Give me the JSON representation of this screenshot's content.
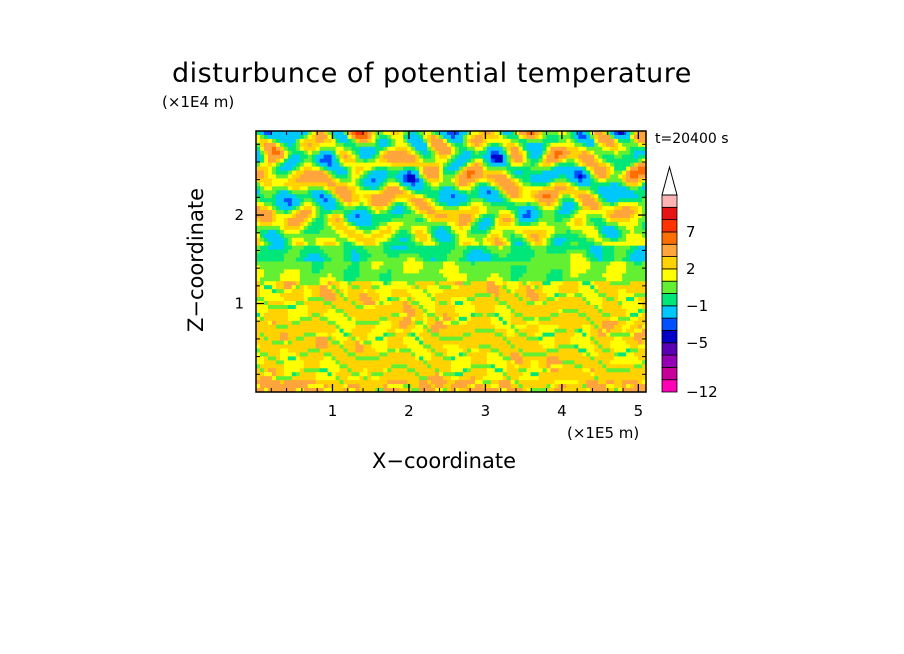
{
  "chart_data": {
    "type": "heatmap",
    "title": "disturbunce of potential temperature",
    "xlabel": "X−coordinate",
    "ylabel": "Z−coordinate",
    "x_unit": "(×1E5 m)",
    "y_unit": "(×1E4 m)",
    "time_label": "t=20400 s",
    "xlim": [
      0,
      5.1
    ],
    "ylim": [
      0,
      2.95
    ],
    "x_ticks": [
      "1",
      "2",
      "3",
      "4",
      "5"
    ],
    "x_tick_values": [
      1,
      2,
      3,
      4,
      5
    ],
    "y_ticks": [
      "1",
      "2"
    ],
    "y_tick_values": [
      1,
      2
    ],
    "colorbar": {
      "levels": [
        -12,
        -11,
        -9,
        -7,
        -5,
        -4,
        -3,
        -1,
        0,
        1,
        2,
        3,
        5,
        7,
        9,
        11
      ],
      "labels": [
        "−12",
        "−5",
        "−1",
        "2",
        "7"
      ],
      "label_values": [
        -12,
        -5,
        -1,
        2,
        7
      ],
      "colors": [
        "#ff00b4",
        "#c8009a",
        "#9600b4",
        "#5a00b4",
        "#0000c8",
        "#0050ff",
        "#00c8ff",
        "#00e678",
        "#64f032",
        "#ffff00",
        "#ffd200",
        "#ffa53c",
        "#ff6e00",
        "#ff3200",
        "#e61414",
        "#ffb4b4"
      ],
      "extend": "max"
    }
  }
}
